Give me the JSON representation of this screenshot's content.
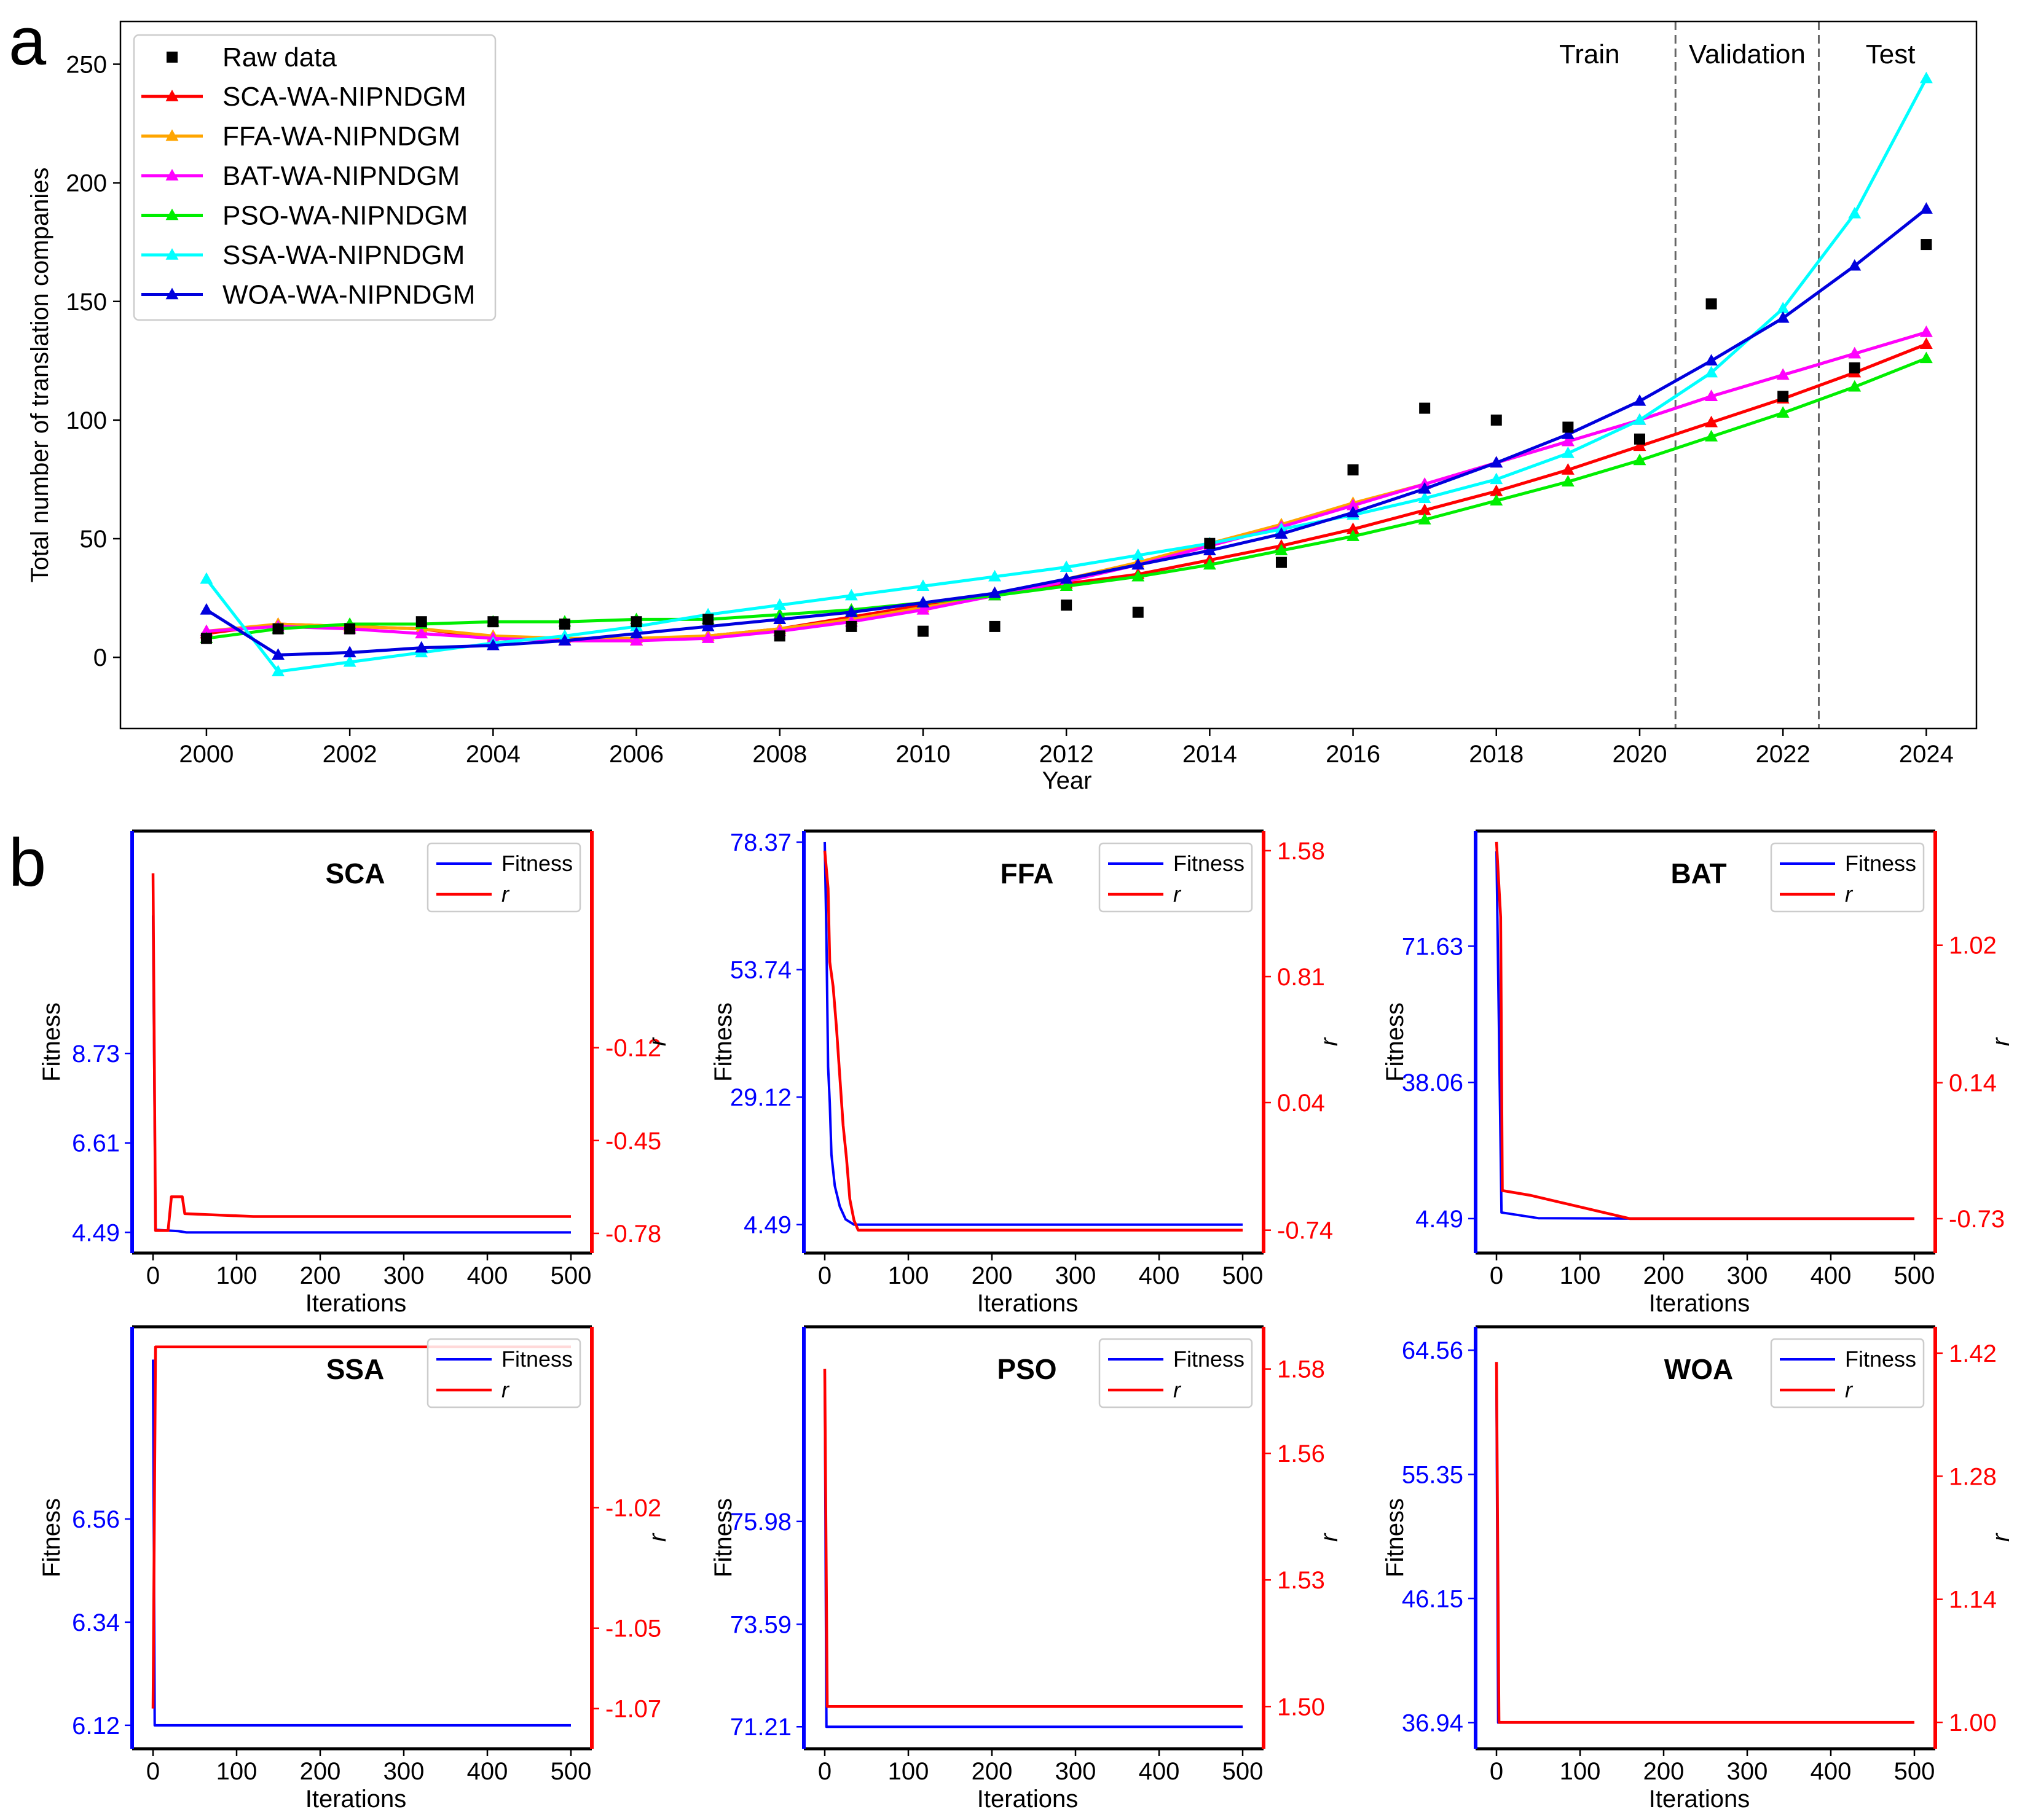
{
  "chart_data": [
    {
      "type": "line",
      "panel_label": "a",
      "xlabel": "Year",
      "ylabel": "Total number of translation companies",
      "xlim": [
        1998.8,
        2024.7
      ],
      "ylim": [
        -30,
        268
      ],
      "xticks": [
        2000,
        2002,
        2004,
        2006,
        2008,
        2010,
        2012,
        2014,
        2016,
        2018,
        2020,
        2022,
        2024
      ],
      "yticks": [
        0,
        50,
        100,
        150,
        200,
        250
      ],
      "x": [
        2000,
        2001,
        2002,
        2003,
        2004,
        2005,
        2006,
        2007,
        2008,
        2009,
        2010,
        2011,
        2012,
        2013,
        2014,
        2015,
        2016,
        2017,
        2018,
        2019,
        2020,
        2021,
        2022,
        2023,
        2024
      ],
      "raw_data": {
        "name": "Raw data",
        "color": "#000000",
        "values": [
          8,
          12,
          12,
          15,
          15,
          14,
          15,
          16,
          9,
          13,
          11,
          13,
          22,
          19,
          48,
          40,
          79,
          105,
          100,
          97,
          92,
          149,
          110,
          122,
          174
        ]
      },
      "series": [
        {
          "name": "SCA-WA-NIPNDGM",
          "color": "#ff0000",
          "values": [
            10,
            14,
            13,
            12,
            8,
            7,
            7,
            9,
            12,
            17,
            22,
            27,
            31,
            35,
            41,
            47,
            54,
            62,
            70,
            79,
            89,
            99,
            109,
            120,
            132
          ]
        },
        {
          "name": "FFA-WA-NIPNDGM",
          "color": "#ffa500",
          "values": [
            11,
            14,
            13,
            12,
            9,
            8,
            8,
            9,
            12,
            16,
            21,
            26,
            33,
            40,
            48,
            56,
            65,
            73,
            82,
            91,
            100,
            110,
            119,
            128,
            137
          ]
        },
        {
          "name": "BAT-WA-NIPNDGM",
          "color": "#ff00ff",
          "values": [
            11,
            13,
            12,
            10,
            8,
            7,
            7,
            8,
            11,
            15,
            20,
            26,
            32,
            39,
            47,
            55,
            64,
            73,
            82,
            91,
            100,
            110,
            119,
            128,
            137
          ]
        },
        {
          "name": "PSO-WA-NIPNDGM",
          "color": "#00ee00",
          "values": [
            8,
            12,
            14,
            14,
            15,
            15,
            16,
            16,
            18,
            20,
            23,
            26,
            30,
            34,
            39,
            45,
            51,
            58,
            66,
            74,
            83,
            93,
            103,
            114,
            126
          ]
        },
        {
          "name": "SSA-WA-NIPNDGM",
          "color": "#00ffff",
          "values": [
            33,
            -6,
            -2,
            2,
            6,
            9,
            13,
            18,
            22,
            26,
            30,
            34,
            38,
            43,
            48,
            54,
            60,
            67,
            75,
            86,
            100,
            120,
            147,
            187,
            244
          ]
        },
        {
          "name": "WOA-WA-NIPNDGM",
          "color": "#0000dd",
          "values": [
            20,
            1,
            2,
            4,
            5,
            7,
            10,
            13,
            16,
            19,
            23,
            27,
            33,
            39,
            45,
            52,
            61,
            71,
            82,
            94,
            108,
            125,
            143,
            165,
            189
          ]
        }
      ],
      "regions": [
        {
          "label": "Train",
          "x_center": 2019.3
        },
        {
          "label": "Validation",
          "x_center": 2021.5
        },
        {
          "label": "Test",
          "x_center": 2023.5
        }
      ],
      "dividers_x": [
        2020.5,
        2022.5
      ],
      "legend": "upper-left"
    },
    {
      "type": "line",
      "panel_label": "b",
      "xlabel": "Iterations",
      "left_ylabel": "Fitness",
      "right_ylabel": "r",
      "xlim": [
        -25,
        525
      ],
      "xticks": [
        0,
        100,
        200,
        300,
        400,
        500
      ],
      "legend": [
        "Fitness",
        "r"
      ],
      "fitness_color": "#0000ff",
      "r_color": "#ff0000",
      "subplots": [
        {
          "title": "SCA",
          "draw_order": "fitness-first",
          "left_ticks": [
            "4.49",
            "6.61",
            "8.73"
          ],
          "right_ticks": [
            "-0.78",
            "-0.45",
            "-0.12"
          ],
          "left_ylim": [
            4.0,
            14.0
          ],
          "right_ylim": [
            -0.85,
            0.65
          ],
          "fitness": [
            [
              0,
              12.0
            ],
            [
              3,
              4.55
            ],
            [
              30,
              4.52
            ],
            [
              40,
              4.49
            ],
            [
              500,
              4.49
            ]
          ],
          "r": [
            [
              0,
              0.5
            ],
            [
              3,
              -0.77
            ],
            [
              18,
              -0.77
            ],
            [
              22,
              -0.65
            ],
            [
              35,
              -0.65
            ],
            [
              38,
              -0.71
            ],
            [
              120,
              -0.72
            ],
            [
              500,
              -0.72
            ]
          ]
        },
        {
          "title": "FFA",
          "draw_order": "fitness-first",
          "left_ticks": [
            "4.49",
            "29.12",
            "53.74",
            "78.37"
          ],
          "right_ticks": [
            "-0.74",
            "0.04",
            "0.81",
            "1.58"
          ],
          "left_ylim": [
            -1.0,
            80.5
          ],
          "right_ylim": [
            -0.88,
            1.7
          ],
          "fitness": [
            [
              0,
              78.37
            ],
            [
              2,
              60
            ],
            [
              4,
              35
            ],
            [
              6,
              28
            ],
            [
              8,
              18
            ],
            [
              12,
              12
            ],
            [
              18,
              8
            ],
            [
              25,
              5.5
            ],
            [
              35,
              4.49
            ],
            [
              500,
              4.49
            ]
          ],
          "r": [
            [
              0,
              1.58
            ],
            [
              4,
              1.35
            ],
            [
              6,
              0.9
            ],
            [
              10,
              0.75
            ],
            [
              14,
              0.5
            ],
            [
              18,
              0.2
            ],
            [
              22,
              -0.1
            ],
            [
              26,
              -0.3
            ],
            [
              30,
              -0.55
            ],
            [
              35,
              -0.68
            ],
            [
              40,
              -0.74
            ],
            [
              500,
              -0.74
            ]
          ]
        },
        {
          "title": "BAT",
          "draw_order": "fitness-first",
          "left_ticks": [
            "4.49",
            "38.06",
            "71.63"
          ],
          "right_ticks": [
            "-0.73",
            "0.14",
            "1.02"
          ],
          "left_ylim": [
            -4.0,
            100.0
          ],
          "right_ylim": [
            -0.95,
            1.75
          ],
          "fitness": [
            [
              0,
              95
            ],
            [
              6,
              6.0
            ],
            [
              50,
              4.6
            ],
            [
              160,
              4.49
            ],
            [
              500,
              4.49
            ]
          ],
          "r": [
            [
              0,
              1.68
            ],
            [
              5,
              1.2
            ],
            [
              7,
              -0.55
            ],
            [
              40,
              -0.58
            ],
            [
              80,
              -0.63
            ],
            [
              120,
              -0.68
            ],
            [
              160,
              -0.73
            ],
            [
              500,
              -0.73
            ]
          ]
        },
        {
          "title": "SSA",
          "draw_order": "fitness-first",
          "left_ticks": [
            "6.12",
            "6.34",
            "6.56"
          ],
          "right_ticks": [
            "-1.07",
            "-1.05",
            "-1.02"
          ],
          "left_ylim": [
            6.07,
            6.97
          ],
          "right_ylim": [
            -1.08,
            -0.975
          ],
          "fitness": [
            [
              0,
              6.9
            ],
            [
              2,
              6.12
            ],
            [
              500,
              6.12
            ]
          ],
          "r": [
            [
              0,
              -1.07
            ],
            [
              3,
              -0.98
            ],
            [
              500,
              -0.98
            ]
          ]
        },
        {
          "title": "PSO",
          "draw_order": "fitness-first",
          "left_ticks": [
            "71.21",
            "73.59",
            "75.98"
          ],
          "right_ticks": [
            "1.50",
            "1.53",
            "1.56",
            "1.58"
          ],
          "left_ylim": [
            70.7,
            80.5
          ],
          "right_ylim": [
            1.49,
            1.59
          ],
          "fitness": [
            [
              0,
              79.5
            ],
            [
              2,
              71.21
            ],
            [
              500,
              71.21
            ]
          ],
          "r": [
            [
              0,
              1.58
            ],
            [
              3,
              1.5
            ],
            [
              500,
              1.5
            ]
          ]
        },
        {
          "title": "WOA",
          "draw_order": "fitness-first",
          "left_ticks": [
            "36.94",
            "46.15",
            "55.35",
            "64.56"
          ],
          "right_ticks": [
            "1.00",
            "1.14",
            "1.28",
            "1.42"
          ],
          "left_ylim": [
            35.0,
            66.3
          ],
          "right_ylim": [
            0.97,
            1.45
          ],
          "fitness": [
            [
              0,
              62
            ],
            [
              2,
              36.94
            ],
            [
              500,
              36.94
            ]
          ],
          "r": [
            [
              0,
              1.41
            ],
            [
              3,
              1.0
            ],
            [
              500,
              1.0
            ]
          ]
        }
      ]
    }
  ]
}
